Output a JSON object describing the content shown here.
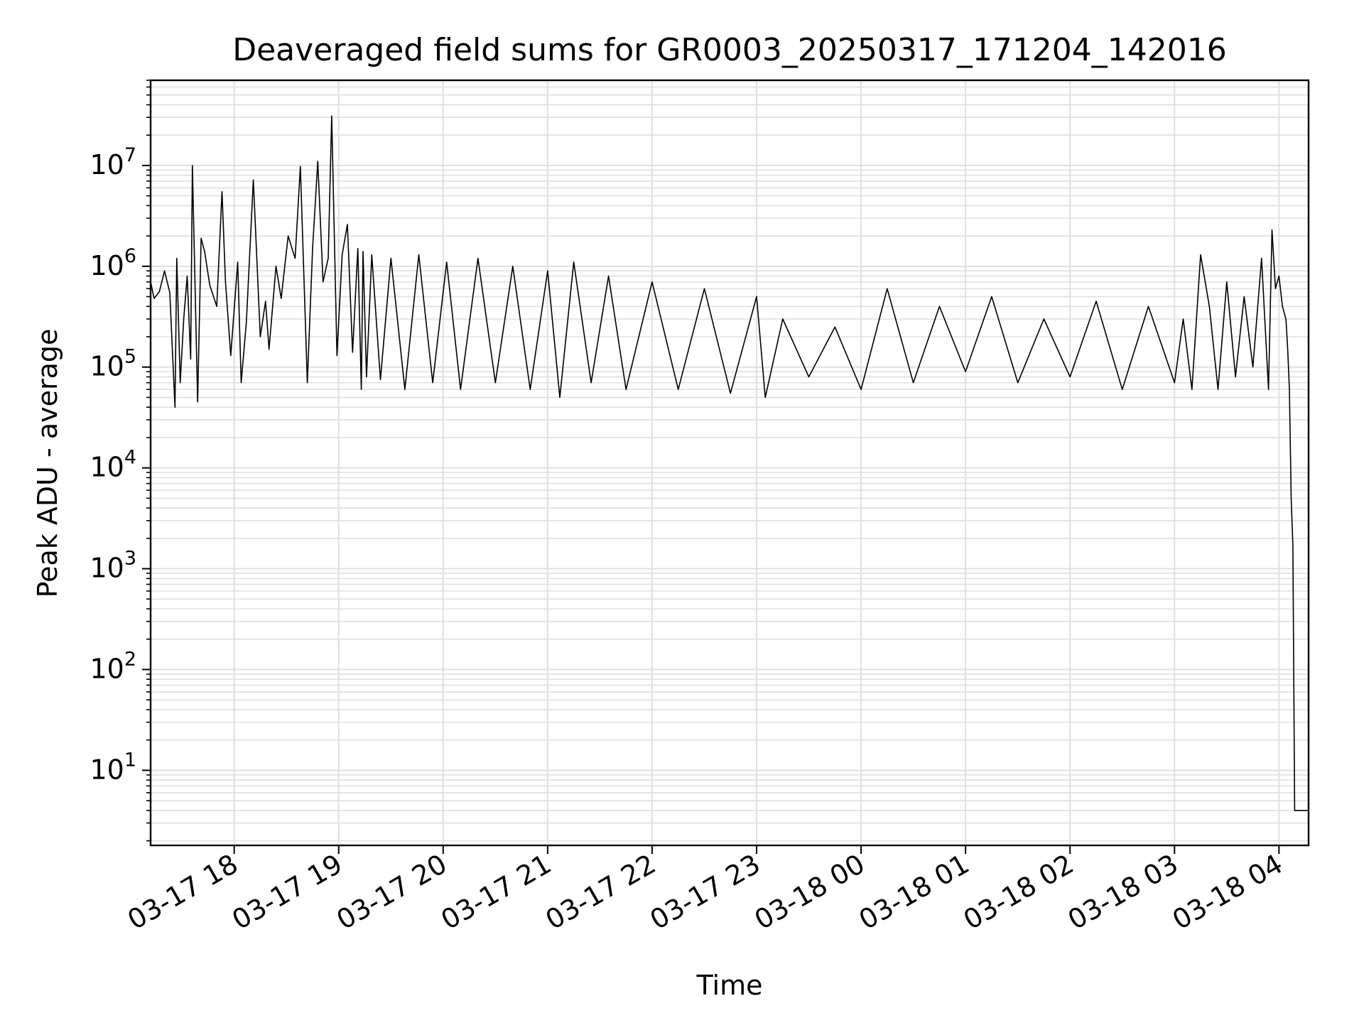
{
  "chart_data": {
    "type": "line",
    "title": "Deaveraged field sums for GR0003_20250317_171204_142016",
    "xlabel": "Time",
    "ylabel": "Peak ADU - average",
    "yscale": "log",
    "xlim": [
      "2025-03-17 17:12",
      "2025-03-18 04:17"
    ],
    "ylim": [
      1.8,
      70000000
    ],
    "grid": true,
    "line_color": "#000000",
    "grid_color": "#e0e0e0",
    "x_ticks": [
      {
        "value": "2025-03-17 18:00",
        "label": "03-17 18"
      },
      {
        "value": "2025-03-17 19:00",
        "label": "03-17 19"
      },
      {
        "value": "2025-03-17 20:00",
        "label": "03-17 20"
      },
      {
        "value": "2025-03-17 21:00",
        "label": "03-17 21"
      },
      {
        "value": "2025-03-17 22:00",
        "label": "03-17 22"
      },
      {
        "value": "2025-03-17 23:00",
        "label": "03-17 23"
      },
      {
        "value": "2025-03-18 00:00",
        "label": "03-18 00"
      },
      {
        "value": "2025-03-18 01:00",
        "label": "03-18 01"
      },
      {
        "value": "2025-03-18 02:00",
        "label": "03-18 02"
      },
      {
        "value": "2025-03-18 03:00",
        "label": "03-18 03"
      },
      {
        "value": "2025-03-18 04:00",
        "label": "03-18 04"
      }
    ],
    "y_ticks": [
      {
        "value": 10,
        "base": "10",
        "exp": "1"
      },
      {
        "value": 100,
        "base": "10",
        "exp": "2"
      },
      {
        "value": 1000,
        "base": "10",
        "exp": "3"
      },
      {
        "value": 10000,
        "base": "10",
        "exp": "4"
      },
      {
        "value": 100000,
        "base": "10",
        "exp": "5"
      },
      {
        "value": 1000000,
        "base": "10",
        "exp": "6"
      },
      {
        "value": 10000000,
        "base": "10",
        "exp": "7"
      }
    ],
    "series": [
      {
        "x": [
          "2025-03-17 17:12",
          "2025-03-17 17:14",
          "2025-03-17 17:17",
          "2025-03-17 17:20",
          "2025-03-17 17:23",
          "2025-03-17 17:26",
          "2025-03-17 17:27",
          "2025-03-17 17:29",
          "2025-03-17 17:31",
          "2025-03-17 17:33",
          "2025-03-17 17:35",
          "2025-03-17 17:36",
          "2025-03-17 17:39",
          "2025-03-17 17:41",
          "2025-03-17 17:43",
          "2025-03-17 17:46",
          "2025-03-17 17:50",
          "2025-03-17 17:53",
          "2025-03-17 17:55",
          "2025-03-17 17:58",
          "2025-03-17 18:02",
          "2025-03-17 18:04",
          "2025-03-17 18:07",
          "2025-03-17 18:11",
          "2025-03-17 18:15",
          "2025-03-17 18:18",
          "2025-03-17 18:20",
          "2025-03-17 18:24",
          "2025-03-17 18:27",
          "2025-03-17 18:31",
          "2025-03-17 18:35",
          "2025-03-17 18:38",
          "2025-03-17 18:42",
          "2025-03-17 18:45",
          "2025-03-17 18:48",
          "2025-03-17 18:51",
          "2025-03-17 18:54",
          "2025-03-17 18:56",
          "2025-03-17 18:59",
          "2025-03-17 19:02",
          "2025-03-17 19:05",
          "2025-03-17 19:08",
          "2025-03-17 19:11",
          "2025-03-17 19:13",
          "2025-03-17 19:14",
          "2025-03-17 19:16",
          "2025-03-17 19:19",
          "2025-03-17 19:24",
          "2025-03-17 19:30",
          "2025-03-17 19:38",
          "2025-03-17 19:46",
          "2025-03-17 19:54",
          "2025-03-17 20:02",
          "2025-03-17 20:10",
          "2025-03-17 20:20",
          "2025-03-17 20:30",
          "2025-03-17 20:40",
          "2025-03-17 20:50",
          "2025-03-17 21:00",
          "2025-03-17 21:07",
          "2025-03-17 21:15",
          "2025-03-17 21:25",
          "2025-03-17 21:35",
          "2025-03-17 21:45",
          "2025-03-17 22:00",
          "2025-03-17 22:15",
          "2025-03-17 22:30",
          "2025-03-17 22:45",
          "2025-03-17 23:00",
          "2025-03-17 23:05",
          "2025-03-17 23:15",
          "2025-03-17 23:30",
          "2025-03-17 23:45",
          "2025-03-18 00:00",
          "2025-03-18 00:15",
          "2025-03-18 00:30",
          "2025-03-18 00:45",
          "2025-03-18 01:00",
          "2025-03-18 01:15",
          "2025-03-18 01:30",
          "2025-03-18 01:45",
          "2025-03-18 02:00",
          "2025-03-18 02:15",
          "2025-03-18 02:30",
          "2025-03-18 02:45",
          "2025-03-18 03:00",
          "2025-03-18 03:05",
          "2025-03-18 03:10",
          "2025-03-18 03:15",
          "2025-03-18 03:20",
          "2025-03-18 03:25",
          "2025-03-18 03:30",
          "2025-03-18 03:35",
          "2025-03-18 03:40",
          "2025-03-18 03:45",
          "2025-03-18 03:50",
          "2025-03-18 03:54",
          "2025-03-18 03:56",
          "2025-03-18 03:58",
          "2025-03-18 04:00",
          "2025-03-18 04:02",
          "2025-03-18 04:04",
          "2025-03-18 04:05",
          "2025-03-18 04:06",
          "2025-03-18 04:07",
          "2025-03-18 04:08",
          "2025-03-18 04:09",
          "2025-03-18 04:12",
          "2025-03-18 04:15",
          "2025-03-18 04:17"
        ],
        "y": [
          700000,
          480000,
          560000,
          900000,
          550000,
          40000,
          1200000,
          70000,
          300000,
          800000,
          120000,
          10000000,
          45000,
          1900000,
          1400000,
          650000,
          400000,
          5500000,
          700000,
          130000,
          1100000,
          70000,
          280000,
          7200000,
          200000,
          450000,
          150000,
          1000000,
          480000,
          2000000,
          1200000,
          9800000,
          70000,
          1500000,
          11000000,
          700000,
          1200000,
          31000000,
          130000,
          1300000,
          2600000,
          140000,
          1500000,
          60000,
          1400000,
          80000,
          1300000,
          75000,
          1200000,
          60000,
          1300000,
          70000,
          1100000,
          60000,
          1200000,
          70000,
          1000000,
          60000,
          900000,
          50000,
          1100000,
          70000,
          800000,
          60000,
          700000,
          60000,
          600000,
          55000,
          500000,
          50000,
          300000,
          80000,
          250000,
          60000,
          600000,
          70000,
          400000,
          90000,
          500000,
          70000,
          300000,
          80000,
          450000,
          60000,
          400000,
          70000,
          300000,
          60000,
          1300000,
          400000,
          60000,
          700000,
          80000,
          500000,
          100000,
          1200000,
          60000,
          2300000,
          600000,
          800000,
          400000,
          300000,
          150000,
          60000,
          5000,
          1700,
          4,
          4,
          4,
          4
        ]
      }
    ]
  }
}
